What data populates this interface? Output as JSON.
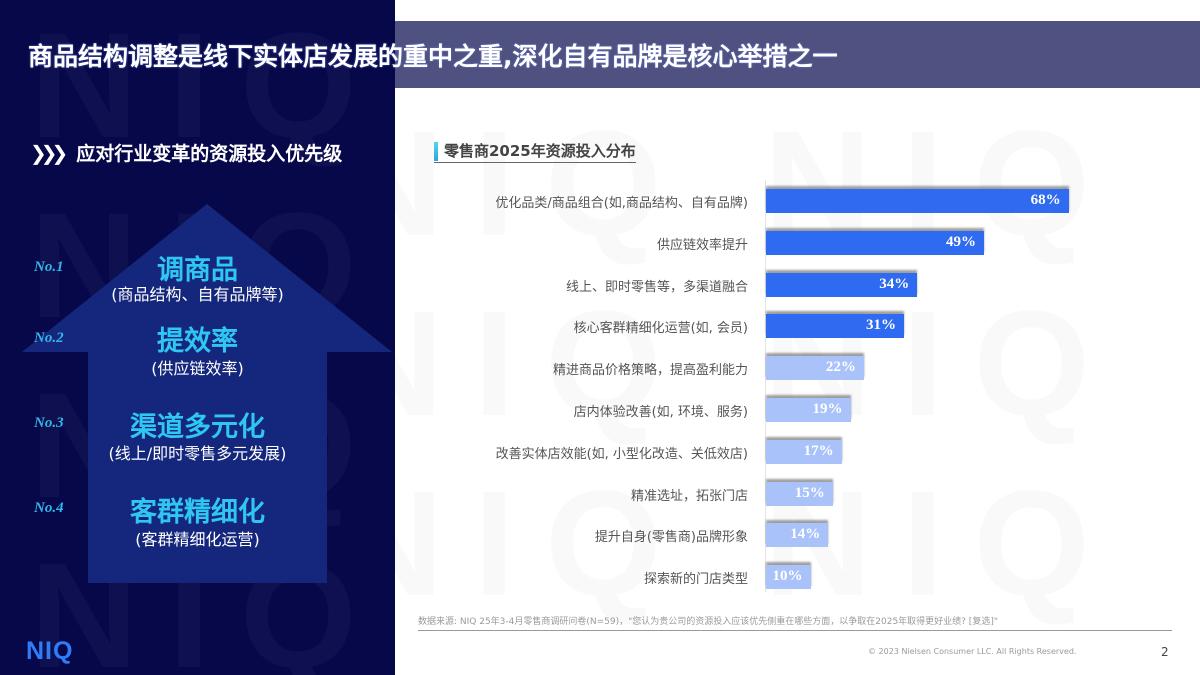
{
  "page": {
    "title": "商品结构调整是线下实体店发展的重中之重,深化自有品牌是核心举措之一",
    "page_number": "2",
    "copyright": "© 2023 Nielsen Consumer LLC. All Rights Reserved.",
    "logo": "NIQ",
    "watermark": "NIQ NIQ NIQ"
  },
  "colors": {
    "left_panel_bg": "#07084a",
    "title_band": "#4f5180",
    "arrow": "#16297e",
    "highlight_cyan": "#2fc6f4",
    "bar_dark": "#2f6bf0",
    "bar_light": "#a9c3fa",
    "logo_blue": "#2f7df6"
  },
  "left": {
    "section_heading_icon": "triple-chevron-right",
    "section_heading": "应对行业变革的资源投入优先级",
    "priorities": [
      {
        "rank": "No.1",
        "main": "调商品",
        "sub": "(商品结构、自有品牌等)"
      },
      {
        "rank": "No.2",
        "main": "提效率",
        "sub": "(供应链效率)"
      },
      {
        "rank": "No.3",
        "main": "渠道多元化",
        "sub": "(线上/即时零售多元发展)"
      },
      {
        "rank": "No.4",
        "main": "客群精细化",
        "sub": "(客群精细化运营)"
      }
    ]
  },
  "chart_data": {
    "type": "bar",
    "orientation": "horizontal",
    "title": "零售商2025年资源投入分布",
    "categories": [
      "优化品类/商品组合(如,商品结构、自有品牌)",
      "供应链效率提升",
      "线上、即时零售等，多渠道融合",
      "核心客群精细化运营(如, 会员)",
      "精进商品价格策略，提高盈利能力",
      "店内体验改善(如, 环境、服务)",
      "改善实体店效能(如, 小型化改造、关低效店)",
      "精准选址，拓张门店",
      "提升自身(零售商)品牌形象",
      "探索新的门店类型"
    ],
    "values": [
      68,
      49,
      34,
      31,
      22,
      19,
      17,
      15,
      14,
      10
    ],
    "value_labels": [
      "68%",
      "49%",
      "34%",
      "31%",
      "22%",
      "19%",
      "17%",
      "15%",
      "14%",
      "10%"
    ],
    "highlight_top_n": 4,
    "xlabel": "",
    "ylabel": "",
    "grid": false,
    "legend": null,
    "unit": "%"
  },
  "footer": {
    "source": "数据来源: NIQ 25年3-4月零售商调研问卷(N=59)，\"您认为贵公司的资源投入应该优先侧重在哪些方面，以争取在2025年取得更好业绩? [复选]\""
  }
}
